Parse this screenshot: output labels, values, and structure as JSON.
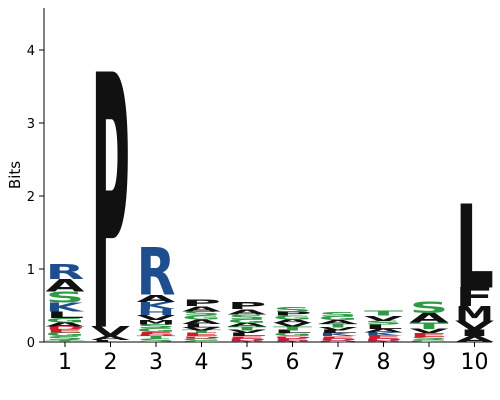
{
  "chart_data": {
    "type": "sequence-logo",
    "title": "",
    "xlabel": "",
    "ylabel": "Bits",
    "ylim": [
      0,
      4.5
    ],
    "yticks": [
      0,
      1,
      2,
      3,
      4
    ],
    "grid": false,
    "legend": "none",
    "colors": {
      "polar": "#2e9a46",
      "basic": "#1f4e8e",
      "hydrophobic": "#111111",
      "acidic": "#d11a2a",
      "neutral": "#7a2a7a"
    },
    "letter_colors": {
      "A": "#111111",
      "V": "#111111",
      "L": "#111111",
      "I": "#111111",
      "P": "#111111",
      "F": "#111111",
      "M": "#111111",
      "W": "#111111",
      "R": "#1f4e8e",
      "K": "#1f4e8e",
      "H": "#1f4e8e",
      "S": "#2e9a46",
      "T": "#2e9a46",
      "G": "#2e9a46",
      "Y": "#2e9a46",
      "C": "#2e9a46",
      "D": "#d11a2a",
      "E": "#d11a2a",
      "N": "#7a2a7a",
      "Q": "#7a2a7a"
    },
    "positions": [
      {
        "x": "1",
        "stack": [
          {
            "letter": "T",
            "height": 0.03
          },
          {
            "letter": "S",
            "height": 0.05
          },
          {
            "letter": "G",
            "height": 0.05
          },
          {
            "letter": "E",
            "height": 0.04
          },
          {
            "letter": "D",
            "height": 0.04
          },
          {
            "letter": "A",
            "height": 0.06
          },
          {
            "letter": "G",
            "height": 0.06
          },
          {
            "letter": "L",
            "height": 0.09
          },
          {
            "letter": "K",
            "height": 0.12
          },
          {
            "letter": "S",
            "height": 0.15
          },
          {
            "letter": "A",
            "height": 0.17
          },
          {
            "letter": "R",
            "height": 0.2
          }
        ]
      },
      {
        "x": "2",
        "stack": [
          {
            "letter": "L",
            "height": 0.03
          },
          {
            "letter": "A",
            "height": 0.05
          },
          {
            "letter": "V",
            "height": 0.13
          },
          {
            "letter": "P",
            "height": 3.5
          }
        ]
      },
      {
        "x": "3",
        "stack": [
          {
            "letter": "S",
            "height": 0.04
          },
          {
            "letter": "T",
            "height": 0.04
          },
          {
            "letter": "D",
            "height": 0.03
          },
          {
            "letter": "E",
            "height": 0.03
          },
          {
            "letter": "G",
            "height": 0.05
          },
          {
            "letter": "S",
            "height": 0.05
          },
          {
            "letter": "M",
            "height": 0.06
          },
          {
            "letter": "V",
            "height": 0.07
          },
          {
            "letter": "H",
            "height": 0.08
          },
          {
            "letter": "K",
            "height": 0.1
          },
          {
            "letter": "A",
            "height": 0.1
          },
          {
            "letter": "R",
            "height": 0.65
          }
        ]
      },
      {
        "x": "4",
        "stack": [
          {
            "letter": "C",
            "height": 0.02
          },
          {
            "letter": "G",
            "height": 0.03
          },
          {
            "letter": "D",
            "height": 0.03
          },
          {
            "letter": "E",
            "height": 0.04
          },
          {
            "letter": "T",
            "height": 0.04
          },
          {
            "letter": "V",
            "height": 0.04
          },
          {
            "letter": "L",
            "height": 0.05
          },
          {
            "letter": "A",
            "height": 0.06
          },
          {
            "letter": "G",
            "height": 0.05
          },
          {
            "letter": "S",
            "height": 0.06
          },
          {
            "letter": "A",
            "height": 0.07
          },
          {
            "letter": "P",
            "height": 0.09
          }
        ]
      },
      {
        "x": "5",
        "stack": [
          {
            "letter": "N",
            "height": 0.02
          },
          {
            "letter": "D",
            "height": 0.03
          },
          {
            "letter": "E",
            "height": 0.03
          },
          {
            "letter": "L",
            "height": 0.04
          },
          {
            "letter": "V",
            "height": 0.04
          },
          {
            "letter": "T",
            "height": 0.05
          },
          {
            "letter": "A",
            "height": 0.05
          },
          {
            "letter": "G",
            "height": 0.05
          },
          {
            "letter": "S",
            "height": 0.07
          },
          {
            "letter": "A",
            "height": 0.07
          },
          {
            "letter": "P",
            "height": 0.1
          }
        ]
      },
      {
        "x": "6",
        "stack": [
          {
            "letter": "N",
            "height": 0.02
          },
          {
            "letter": "E",
            "height": 0.03
          },
          {
            "letter": "D",
            "height": 0.03
          },
          {
            "letter": "G",
            "height": 0.04
          },
          {
            "letter": "L",
            "height": 0.04
          },
          {
            "letter": "T",
            "height": 0.05
          },
          {
            "letter": "V",
            "height": 0.05
          },
          {
            "letter": "A",
            "height": 0.05
          },
          {
            "letter": "G",
            "height": 0.05
          },
          {
            "letter": "P",
            "height": 0.05
          },
          {
            "letter": "S",
            "height": 0.07
          }
        ]
      },
      {
        "x": "7",
        "stack": [
          {
            "letter": "Q",
            "height": 0.02
          },
          {
            "letter": "D",
            "height": 0.03
          },
          {
            "letter": "E",
            "height": 0.03
          },
          {
            "letter": "K",
            "height": 0.04
          },
          {
            "letter": "L",
            "height": 0.04
          },
          {
            "letter": "V",
            "height": 0.04
          },
          {
            "letter": "T",
            "height": 0.05
          },
          {
            "letter": "A",
            "height": 0.05
          },
          {
            "letter": "G",
            "height": 0.05
          },
          {
            "letter": "S",
            "height": 0.06
          }
        ]
      },
      {
        "x": "8",
        "stack": [
          {
            "letter": "N",
            "height": 0.02
          },
          {
            "letter": "D",
            "height": 0.03
          },
          {
            "letter": "E",
            "height": 0.04
          },
          {
            "letter": "K",
            "height": 0.04
          },
          {
            "letter": "A",
            "height": 0.05
          },
          {
            "letter": "L",
            "height": 0.06
          },
          {
            "letter": "S",
            "height": 0.05
          },
          {
            "letter": "V",
            "height": 0.07
          },
          {
            "letter": "T",
            "height": 0.07
          }
        ]
      },
      {
        "x": "9",
        "stack": [
          {
            "letter": "G",
            "height": 0.03
          },
          {
            "letter": "S",
            "height": 0.04
          },
          {
            "letter": "E",
            "height": 0.05
          },
          {
            "letter": "V",
            "height": 0.06
          },
          {
            "letter": "T",
            "height": 0.09
          },
          {
            "letter": "A",
            "height": 0.13
          },
          {
            "letter": "S",
            "height": 0.16
          }
        ]
      },
      {
        "x": "10",
        "stack": [
          {
            "letter": "A",
            "height": 0.08
          },
          {
            "letter": "I",
            "height": 0.09
          },
          {
            "letter": "V",
            "height": 0.12
          },
          {
            "letter": "M",
            "height": 0.2
          },
          {
            "letter": "F",
            "height": 0.26
          },
          {
            "letter": "L",
            "height": 1.15
          }
        ]
      }
    ]
  }
}
